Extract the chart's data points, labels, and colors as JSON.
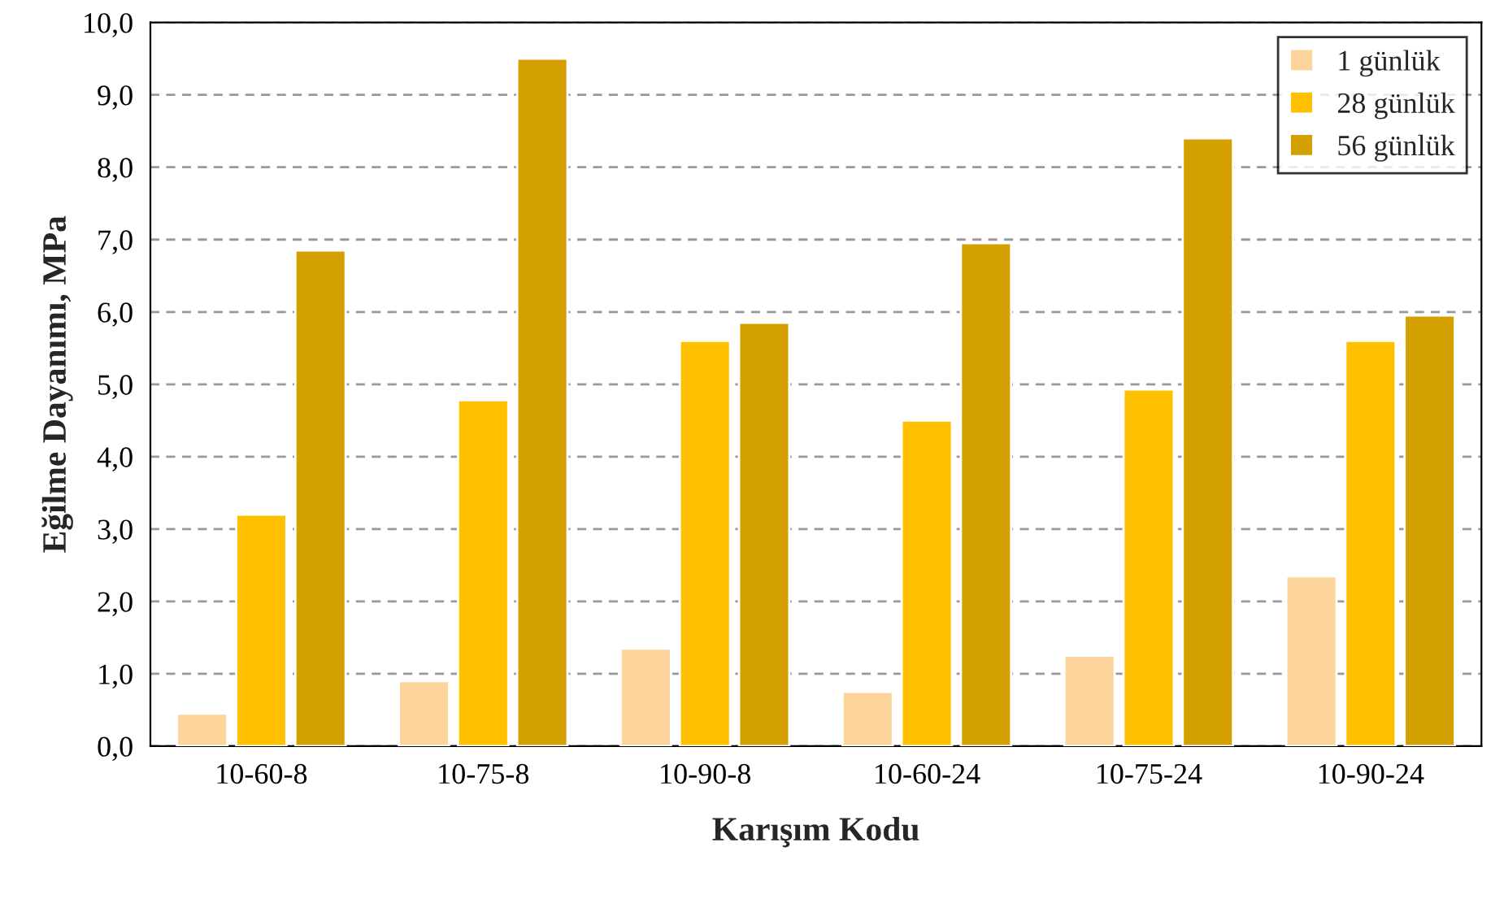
{
  "chart_data": {
    "type": "bar",
    "xlabel": "Karışım Kodu",
    "ylabel": "Eğilme Dayanımı, MPa",
    "categories": [
      "10-60-8",
      "10-75-8",
      "10-90-8",
      "10-60-24",
      "10-75-24",
      "10-90-24"
    ],
    "series": [
      {
        "name": "1 günlük",
        "color": "#fdd49b",
        "values": [
          0.45,
          0.9,
          1.35,
          0.75,
          1.25,
          2.35
        ]
      },
      {
        "name": "28 günlük",
        "color": "#ffc000",
        "values": [
          3.2,
          4.78,
          5.6,
          4.5,
          4.93,
          5.6
        ]
      },
      {
        "name": "56 günlük",
        "color": "#d4a000",
        "values": [
          6.85,
          9.5,
          5.85,
          6.95,
          8.4,
          5.95
        ]
      }
    ],
    "ylim": [
      0,
      10
    ],
    "yticks": [
      {
        "value": 0,
        "label": "0,0"
      },
      {
        "value": 1,
        "label": "1,0"
      },
      {
        "value": 2,
        "label": "2,0"
      },
      {
        "value": 3,
        "label": "3,0"
      },
      {
        "value": 4,
        "label": "4,0"
      },
      {
        "value": 5,
        "label": "5,0"
      },
      {
        "value": 6,
        "label": "6,0"
      },
      {
        "value": 7,
        "label": "7,0"
      },
      {
        "value": 8,
        "label": "8,0"
      },
      {
        "value": 9,
        "label": "9,0"
      },
      {
        "value": 10,
        "label": "10,0"
      }
    ],
    "grid": "y",
    "legend": "top right"
  }
}
